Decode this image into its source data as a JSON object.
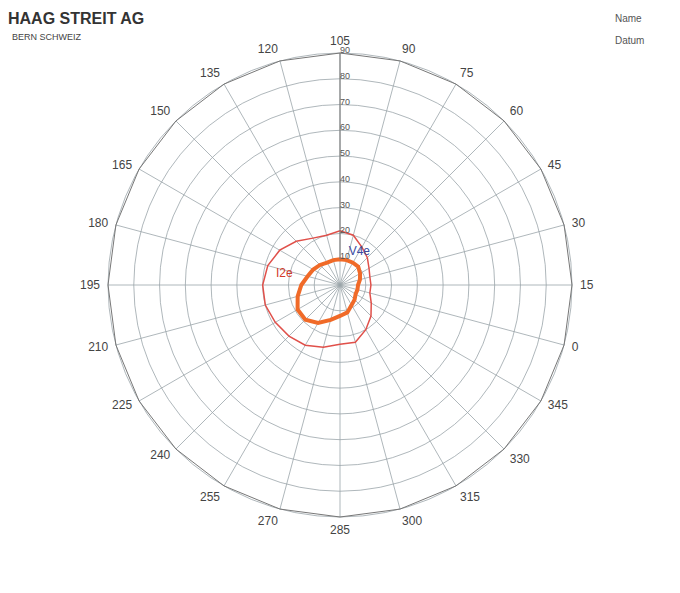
{
  "chart_data": {
    "type": "polar",
    "title": "HAAG STREIT AG",
    "subtitle": "BERN SCHWEIZ",
    "header_fields": [
      "Name",
      "Datum"
    ],
    "categories": [
      0,
      15,
      30,
      45,
      60,
      75,
      90,
      105,
      120,
      135,
      150,
      165,
      180,
      195,
      210,
      225,
      240,
      255,
      270,
      285,
      300,
      315,
      330,
      345
    ],
    "series": [
      {
        "name": "V4e",
        "color": "#e0504a",
        "line_style": "thin",
        "values": [
          12,
          13,
          15,
          17,
          20,
          21,
          20,
          21,
          24,
          27,
          29,
          30,
          30,
          29,
          28,
          27,
          25,
          23,
          23,
          20,
          17,
          14,
          12,
          12
        ]
      },
      {
        "name": "I2e",
        "color": "#f06a28",
        "line_style": "thick",
        "values": [
          8,
          9,
          10,
          10,
          10,
          10,
          10,
          10,
          11,
          12,
          13,
          15,
          17,
          19,
          19,
          17,
          14,
          12,
          11,
          9,
          8,
          7,
          7,
          7
        ]
      }
    ],
    "annotations": [
      {
        "text": "V4e",
        "angle": 60,
        "r": 15
      },
      {
        "text": "I2e",
        "angle": 169,
        "r": 22
      }
    ],
    "ylim": [
      0,
      90
    ],
    "yticks": [
      10,
      20,
      30,
      40,
      50,
      60,
      70,
      80,
      90
    ],
    "grid": true
  }
}
